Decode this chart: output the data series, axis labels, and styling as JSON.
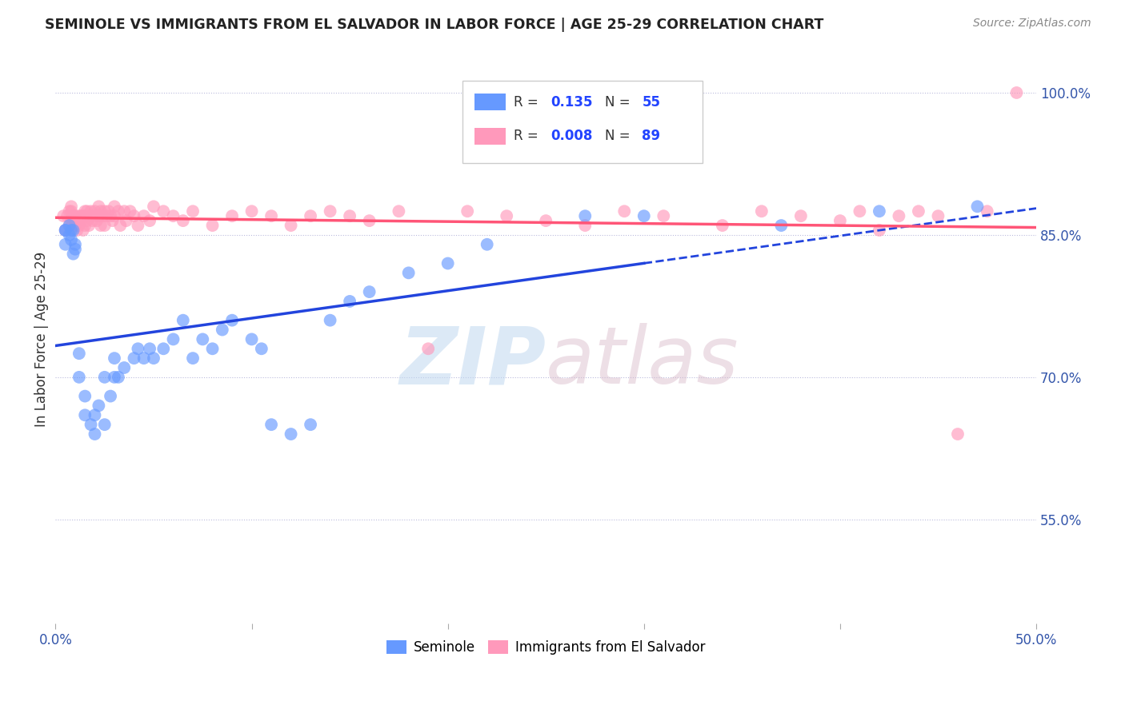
{
  "title": "SEMINOLE VS IMMIGRANTS FROM EL SALVADOR IN LABOR FORCE | AGE 25-29 CORRELATION CHART",
  "source": "Source: ZipAtlas.com",
  "ylabel": "In Labor Force | Age 25-29",
  "xlim": [
    0.0,
    0.5
  ],
  "ylim": [
    0.44,
    1.04
  ],
  "xticks": [
    0.0,
    0.1,
    0.2,
    0.3,
    0.4,
    0.5
  ],
  "xticklabels": [
    "0.0%",
    "",
    "",
    "",
    "",
    "50.0%"
  ],
  "yticks_right": [
    0.55,
    0.7,
    0.85,
    1.0
  ],
  "yticklabels_right": [
    "55.0%",
    "70.0%",
    "85.0%",
    "100.0%"
  ],
  "seminole_R": 0.135,
  "seminole_N": 55,
  "salvador_R": 0.008,
  "salvador_N": 89,
  "seminole_color": "#6699ff",
  "salvador_color": "#ff99bb",
  "seminole_trend_color": "#2244dd",
  "salvador_trend_color": "#ff5577",
  "seminole_trend_solid_end": 0.3,
  "seminole_x": [
    0.005,
    0.005,
    0.005,
    0.007,
    0.007,
    0.008,
    0.008,
    0.009,
    0.009,
    0.01,
    0.01,
    0.012,
    0.012,
    0.015,
    0.015,
    0.018,
    0.02,
    0.02,
    0.022,
    0.025,
    0.025,
    0.028,
    0.03,
    0.03,
    0.032,
    0.035,
    0.04,
    0.042,
    0.045,
    0.048,
    0.05,
    0.055,
    0.06,
    0.065,
    0.07,
    0.075,
    0.08,
    0.085,
    0.09,
    0.1,
    0.105,
    0.11,
    0.12,
    0.13,
    0.14,
    0.15,
    0.16,
    0.18,
    0.2,
    0.22,
    0.27,
    0.3,
    0.37,
    0.42,
    0.47
  ],
  "seminole_y": [
    0.855,
    0.84,
    0.855,
    0.86,
    0.85,
    0.855,
    0.845,
    0.855,
    0.83,
    0.84,
    0.835,
    0.725,
    0.7,
    0.68,
    0.66,
    0.65,
    0.64,
    0.66,
    0.67,
    0.7,
    0.65,
    0.68,
    0.7,
    0.72,
    0.7,
    0.71,
    0.72,
    0.73,
    0.72,
    0.73,
    0.72,
    0.73,
    0.74,
    0.76,
    0.72,
    0.74,
    0.73,
    0.75,
    0.76,
    0.74,
    0.73,
    0.65,
    0.64,
    0.65,
    0.76,
    0.78,
    0.79,
    0.81,
    0.82,
    0.84,
    0.87,
    0.87,
    0.86,
    0.875,
    0.88
  ],
  "salvador_x": [
    0.004,
    0.005,
    0.006,
    0.007,
    0.007,
    0.008,
    0.008,
    0.008,
    0.009,
    0.009,
    0.01,
    0.01,
    0.01,
    0.011,
    0.011,
    0.012,
    0.012,
    0.013,
    0.013,
    0.014,
    0.014,
    0.015,
    0.015,
    0.015,
    0.016,
    0.016,
    0.017,
    0.018,
    0.018,
    0.019,
    0.02,
    0.02,
    0.021,
    0.022,
    0.022,
    0.023,
    0.023,
    0.024,
    0.025,
    0.025,
    0.026,
    0.027,
    0.028,
    0.029,
    0.03,
    0.03,
    0.032,
    0.033,
    0.035,
    0.036,
    0.038,
    0.04,
    0.042,
    0.045,
    0.048,
    0.05,
    0.055,
    0.06,
    0.065,
    0.07,
    0.08,
    0.09,
    0.1,
    0.11,
    0.12,
    0.13,
    0.14,
    0.15,
    0.16,
    0.175,
    0.19,
    0.21,
    0.23,
    0.25,
    0.27,
    0.29,
    0.31,
    0.34,
    0.36,
    0.38,
    0.4,
    0.41,
    0.42,
    0.43,
    0.44,
    0.45,
    0.46,
    0.475,
    0.49
  ],
  "salvador_y": [
    0.87,
    0.855,
    0.87,
    0.875,
    0.86,
    0.865,
    0.875,
    0.88,
    0.865,
    0.87,
    0.865,
    0.87,
    0.86,
    0.855,
    0.865,
    0.87,
    0.86,
    0.87,
    0.865,
    0.87,
    0.855,
    0.87,
    0.875,
    0.86,
    0.875,
    0.865,
    0.86,
    0.87,
    0.875,
    0.865,
    0.875,
    0.87,
    0.865,
    0.87,
    0.88,
    0.86,
    0.875,
    0.87,
    0.875,
    0.86,
    0.87,
    0.875,
    0.87,
    0.865,
    0.88,
    0.87,
    0.875,
    0.86,
    0.875,
    0.865,
    0.875,
    0.87,
    0.86,
    0.87,
    0.865,
    0.88,
    0.875,
    0.87,
    0.865,
    0.875,
    0.86,
    0.87,
    0.875,
    0.87,
    0.86,
    0.87,
    0.875,
    0.87,
    0.865,
    0.875,
    0.73,
    0.875,
    0.87,
    0.865,
    0.86,
    0.875,
    0.87,
    0.86,
    0.875,
    0.87,
    0.865,
    0.875,
    0.855,
    0.87,
    0.875,
    0.87,
    0.64,
    0.875,
    1.0
  ]
}
